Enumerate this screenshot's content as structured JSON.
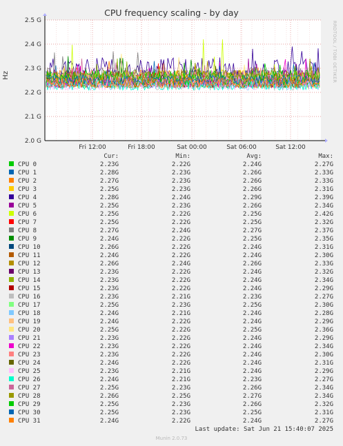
{
  "header": {
    "side_label": "RRDTOOL / TOBI OETIKER",
    "last_update": "Last update: Sat Jun 21 15:40:07 2025",
    "footer": "Munin 2.0.73"
  },
  "legend_headers": {
    "cur": "Cur:",
    "min": "Min:",
    "avg": "Avg:",
    "max": "Max:"
  },
  "chart_data": {
    "type": "line",
    "title": "CPU frequency scaling - by day",
    "ylabel": "Hz",
    "ylim": [
      2.0,
      2.5
    ],
    "y_ticks": [
      "2.0 G",
      "2.1 G",
      "2.2 G",
      "2.3 G",
      "2.4 G",
      "2.5 G"
    ],
    "x_ticks": [
      "Fri 12:00",
      "Fri 18:00",
      "Sat 00:00",
      "Sat 06:00",
      "Sat 12:00"
    ],
    "grid": true,
    "series": [
      {
        "name": "CPU 0",
        "color": "#00cc00",
        "cur": "2.23G",
        "min": "2.22G",
        "avg": "2.24G",
        "max": "2.27G"
      },
      {
        "name": "CPU 1",
        "color": "#0066b3",
        "cur": "2.28G",
        "min": "2.23G",
        "avg": "2.26G",
        "max": "2.33G"
      },
      {
        "name": "CPU 2",
        "color": "#ff8000",
        "cur": "2.27G",
        "min": "2.23G",
        "avg": "2.26G",
        "max": "2.33G"
      },
      {
        "name": "CPU 3",
        "color": "#ffcc00",
        "cur": "2.25G",
        "min": "2.23G",
        "avg": "2.26G",
        "max": "2.31G"
      },
      {
        "name": "CPU 4",
        "color": "#330099",
        "cur": "2.28G",
        "min": "2.24G",
        "avg": "2.29G",
        "max": "2.39G"
      },
      {
        "name": "CPU 5",
        "color": "#990099",
        "cur": "2.25G",
        "min": "2.23G",
        "avg": "2.26G",
        "max": "2.34G"
      },
      {
        "name": "CPU 6",
        "color": "#ccff00",
        "cur": "2.25G",
        "min": "2.22G",
        "avg": "2.25G",
        "max": "2.42G"
      },
      {
        "name": "CPU 7",
        "color": "#ff0000",
        "cur": "2.25G",
        "min": "2.22G",
        "avg": "2.25G",
        "max": "2.32G"
      },
      {
        "name": "CPU 8",
        "color": "#808080",
        "cur": "2.27G",
        "min": "2.24G",
        "avg": "2.27G",
        "max": "2.37G"
      },
      {
        "name": "CPU 9",
        "color": "#008f00",
        "cur": "2.24G",
        "min": "2.22G",
        "avg": "2.25G",
        "max": "2.35G"
      },
      {
        "name": "CPU 10",
        "color": "#00487d",
        "cur": "2.26G",
        "min": "2.22G",
        "avg": "2.24G",
        "max": "2.31G"
      },
      {
        "name": "CPU 11",
        "color": "#b35a00",
        "cur": "2.24G",
        "min": "2.22G",
        "avg": "2.24G",
        "max": "2.30G"
      },
      {
        "name": "CPU 12",
        "color": "#b38f00",
        "cur": "2.26G",
        "min": "2.24G",
        "avg": "2.26G",
        "max": "2.33G"
      },
      {
        "name": "CPU 13",
        "color": "#6b006b",
        "cur": "2.23G",
        "min": "2.22G",
        "avg": "2.24G",
        "max": "2.32G"
      },
      {
        "name": "CPU 14",
        "color": "#8fb300",
        "cur": "2.23G",
        "min": "2.22G",
        "avg": "2.24G",
        "max": "2.34G"
      },
      {
        "name": "CPU 15",
        "color": "#b30000",
        "cur": "2.23G",
        "min": "2.22G",
        "avg": "2.24G",
        "max": "2.29G"
      },
      {
        "name": "CPU 16",
        "color": "#bebebe",
        "cur": "2.23G",
        "min": "2.21G",
        "avg": "2.23G",
        "max": "2.27G"
      },
      {
        "name": "CPU 17",
        "color": "#80ff80",
        "cur": "2.25G",
        "min": "2.23G",
        "avg": "2.25G",
        "max": "2.30G"
      },
      {
        "name": "CPU 18",
        "color": "#80c9ff",
        "cur": "2.24G",
        "min": "2.21G",
        "avg": "2.24G",
        "max": "2.28G"
      },
      {
        "name": "CPU 19",
        "color": "#ffc080",
        "cur": "2.24G",
        "min": "2.22G",
        "avg": "2.24G",
        "max": "2.29G"
      },
      {
        "name": "CPU 20",
        "color": "#ffe680",
        "cur": "2.25G",
        "min": "2.22G",
        "avg": "2.25G",
        "max": "2.36G"
      },
      {
        "name": "CPU 21",
        "color": "#aa80ff",
        "cur": "2.23G",
        "min": "2.22G",
        "avg": "2.24G",
        "max": "2.29G"
      },
      {
        "name": "CPU 22",
        "color": "#ee00cc",
        "cur": "2.23G",
        "min": "2.22G",
        "avg": "2.24G",
        "max": "2.34G"
      },
      {
        "name": "CPU 23",
        "color": "#ff8080",
        "cur": "2.23G",
        "min": "2.22G",
        "avg": "2.24G",
        "max": "2.30G"
      },
      {
        "name": "CPU 24",
        "color": "#666600",
        "cur": "2.24G",
        "min": "2.22G",
        "avg": "2.24G",
        "max": "2.31G"
      },
      {
        "name": "CPU 25",
        "color": "#ffbfff",
        "cur": "2.23G",
        "min": "2.21G",
        "avg": "2.24G",
        "max": "2.29G"
      },
      {
        "name": "CPU 26",
        "color": "#00ffcc",
        "cur": "2.24G",
        "min": "2.21G",
        "avg": "2.23G",
        "max": "2.27G"
      },
      {
        "name": "CPU 27",
        "color": "#cc6699",
        "cur": "2.25G",
        "min": "2.23G",
        "avg": "2.26G",
        "max": "2.34G"
      },
      {
        "name": "CPU 28",
        "color": "#999900",
        "cur": "2.26G",
        "min": "2.25G",
        "avg": "2.27G",
        "max": "2.34G"
      },
      {
        "name": "CPU 29",
        "color": "#00cc00",
        "cur": "2.25G",
        "min": "2.23G",
        "avg": "2.26G",
        "max": "2.32G"
      },
      {
        "name": "CPU 30",
        "color": "#0066b3",
        "cur": "2.25G",
        "min": "2.23G",
        "avg": "2.25G",
        "max": "2.31G"
      },
      {
        "name": "CPU 31",
        "color": "#ff8000",
        "cur": "2.24G",
        "min": "2.22G",
        "avg": "2.24G",
        "max": "2.27G"
      }
    ]
  }
}
